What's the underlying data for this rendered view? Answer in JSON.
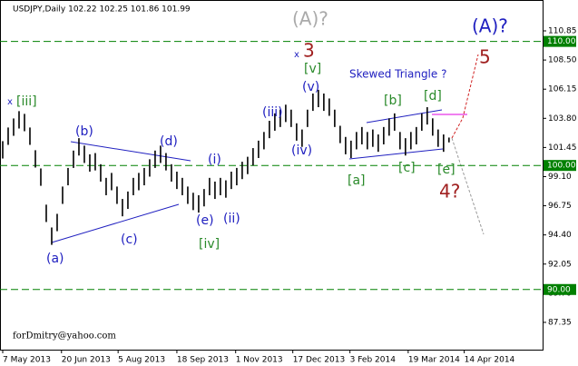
{
  "chart_data": {
    "type": "ohlc",
    "title": "USDJPY,Daily  102.22 102.25 101.86 101.99",
    "footer": "forDmitry@yahoo.com",
    "low": [
      100.56,
      101.66,
      102.39,
      102.98,
      102.76,
      101.66,
      99.83,
      98.36,
      95.44,
      93.6,
      94.7,
      96.9,
      98.4,
      99.8,
      100.8,
      100.2,
      99.5,
      99.6,
      98.7,
      97.6,
      98.0,
      96.9,
      95.9,
      96.5,
      97.6,
      98.0,
      98.4,
      99.1,
      99.8,
      100.2,
      99.6,
      98.7,
      98.1,
      97.6,
      96.9,
      96.4,
      96.2,
      96.7,
      97.6,
      97.3,
      97.6,
      97.4,
      98.1,
      98.4,
      98.9,
      99.3,
      100.0,
      100.6,
      101.3,
      102.2,
      102.8,
      103.1,
      103.5,
      103.1,
      102.0,
      101.5,
      103.1,
      104.4,
      104.7,
      104.4,
      104.0,
      103.1,
      101.8,
      100.9,
      100.6,
      101.3,
      101.7,
      101.3,
      101.5,
      101.1,
      101.7,
      102.4,
      102.8,
      101.3,
      100.8,
      101.3,
      101.7,
      102.8,
      103.3,
      102.4,
      101.5,
      101.1,
      101.86
    ],
    "high": [
      101.96,
      103.06,
      103.79,
      104.38,
      104.16,
      103.06,
      101.23,
      99.76,
      96.84,
      95.0,
      96.1,
      98.3,
      99.8,
      101.2,
      102.2,
      101.6,
      100.9,
      101.0,
      100.1,
      99.0,
      99.4,
      98.3,
      97.3,
      97.9,
      99.0,
      99.4,
      99.8,
      100.5,
      101.2,
      101.6,
      101.0,
      100.1,
      99.5,
      99.0,
      98.3,
      97.8,
      97.6,
      98.1,
      99.0,
      98.7,
      99.0,
      98.8,
      99.5,
      99.8,
      100.3,
      100.7,
      101.4,
      102.0,
      102.7,
      103.6,
      104.2,
      104.5,
      104.9,
      104.5,
      103.4,
      102.9,
      104.5,
      105.8,
      106.1,
      105.8,
      105.4,
      104.5,
      103.2,
      102.3,
      102.0,
      102.7,
      103.1,
      102.7,
      102.9,
      102.5,
      103.1,
      103.8,
      104.2,
      102.7,
      102.2,
      102.7,
      103.1,
      104.2,
      104.7,
      103.8,
      102.9,
      102.5,
      102.25
    ],
    "xlim": [
      -0.5,
      99.2
    ],
    "xticks": [
      {
        "value": 0,
        "label": "7 May 2013"
      },
      {
        "value": 10.8,
        "label": "20 Jun 2013"
      },
      {
        "value": 21.2,
        "label": "5 Aug 2013"
      },
      {
        "value": 32,
        "label": "18 Sep 2013"
      },
      {
        "value": 42.8,
        "label": "1 Nov 2013"
      },
      {
        "value": 53.3,
        "label": "17 Dec 2013"
      },
      {
        "value": 63.8,
        "label": "3 Feb 2014"
      },
      {
        "value": 74.5,
        "label": "19 Mar 2014"
      },
      {
        "value": 84.8,
        "label": "14 Apr 2014"
      }
    ],
    "ylim": [
      85.15,
      113.34
    ],
    "yticks": [
      110.85,
      {
        "value": 108.5,
        "label": "108.50"
      },
      106.15,
      {
        "value": 103.8,
        "label": "103.80"
      },
      101.45,
      {
        "value": 99.1,
        "label": "99.10"
      },
      96.75,
      {
        "value": 94.4,
        "label": "94.40"
      },
      92.05,
      {
        "value": 89.7,
        "label": "89.70"
      },
      87.35
    ],
    "levels": [
      {
        "value": 110,
        "label": "110.00"
      },
      {
        "value": 100,
        "label": "100.00"
      },
      {
        "value": 90,
        "label": "90.00"
      }
    ],
    "annotations": [
      "(A)?",
      "(A)?",
      "x",
      "3",
      "[v]",
      "(v)",
      "Skewed Triangle ?",
      "5",
      "[b]",
      "[d]",
      "(iii)",
      "(iv)",
      "[a]",
      "[c]",
      "[e]",
      "4?",
      "x",
      "[iii]",
      "(b)",
      "(d)",
      "(i)",
      "(e)",
      "(ii)",
      "[iv]",
      "(c)",
      "(a)"
    ]
  }
}
